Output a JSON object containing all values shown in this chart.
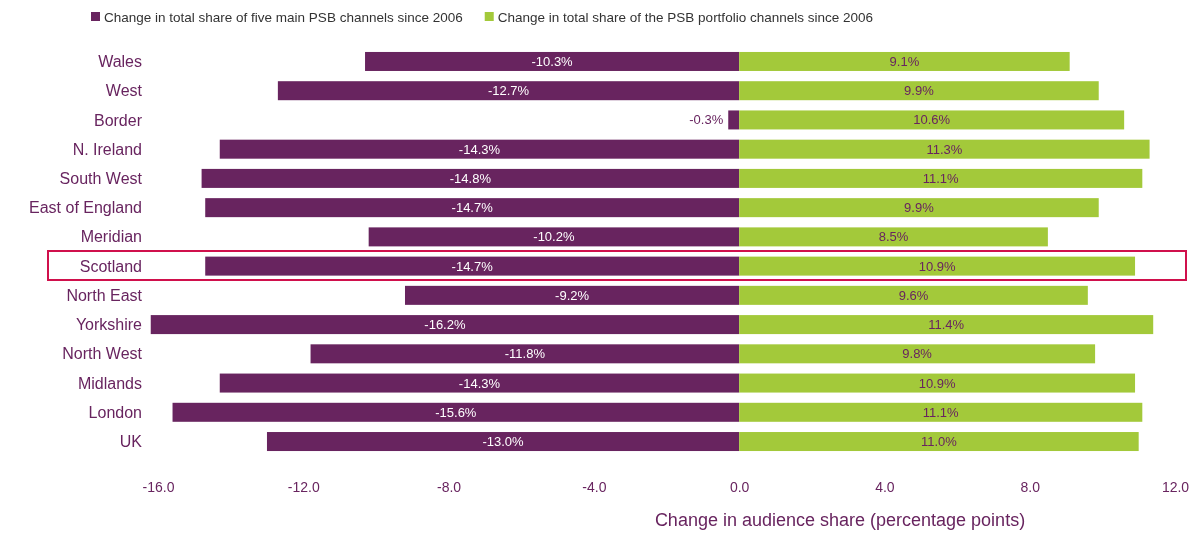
{
  "chart_data": {
    "type": "bar",
    "orientation": "horizontal",
    "xlabel": "Change in audience share (percentage points)",
    "categories": [
      "Wales",
      "West",
      "Border",
      "N. Ireland",
      "South West",
      "East of England",
      "Meridian",
      "Scotland",
      "North East",
      "Yorkshire",
      "North West",
      "Midlands",
      "London",
      "UK"
    ],
    "series": [
      {
        "name": "Change in total share of five main PSB channels since 2006",
        "color": "#68245f",
        "values": [
          -10.3,
          -12.7,
          -0.3,
          -14.3,
          -14.8,
          -14.7,
          -10.2,
          -14.7,
          -9.2,
          -16.2,
          -11.8,
          -14.3,
          -15.6,
          -13.0
        ],
        "value_labels": [
          "-10.3%",
          "-12.7%",
          "-0.3%",
          "-14.3%",
          "-14.8%",
          "-14.7%",
          "-10.2%",
          "-14.7%",
          "-9.2%",
          "-16.2%",
          "-11.8%",
          "-14.3%",
          "-15.6%",
          "-13.0%"
        ]
      },
      {
        "name": "Change in total share of the PSB portfolio channels since 2006",
        "color": "#a3c93a",
        "values": [
          9.1,
          9.9,
          10.6,
          11.3,
          11.1,
          9.9,
          8.5,
          10.9,
          9.6,
          11.4,
          9.8,
          10.9,
          11.1,
          11.0
        ],
        "value_labels": [
          "9.1%",
          "9.9%",
          "10.6%",
          "11.3%",
          "11.1%",
          "9.9%",
          "8.5%",
          "10.9%",
          "9.6%",
          "11.4%",
          "9.8%",
          "10.9%",
          "11.1%",
          "11.0%"
        ]
      }
    ],
    "xlim": [
      -16.3,
      12
    ],
    "xticks": [
      {
        "value": -16,
        "label": "-16.0"
      },
      {
        "value": -12,
        "label": "-12.0"
      },
      {
        "value": -8,
        "label": "-8.0"
      },
      {
        "value": -4,
        "label": "-4.0"
      },
      {
        "value": 0,
        "label": "0.0"
      },
      {
        "value": 4,
        "label": "4.0"
      },
      {
        "value": 8,
        "label": "8.0"
      },
      {
        "value": 12,
        "label": "12.0"
      }
    ],
    "stacked": true,
    "grid": false,
    "legend": "top"
  }
}
